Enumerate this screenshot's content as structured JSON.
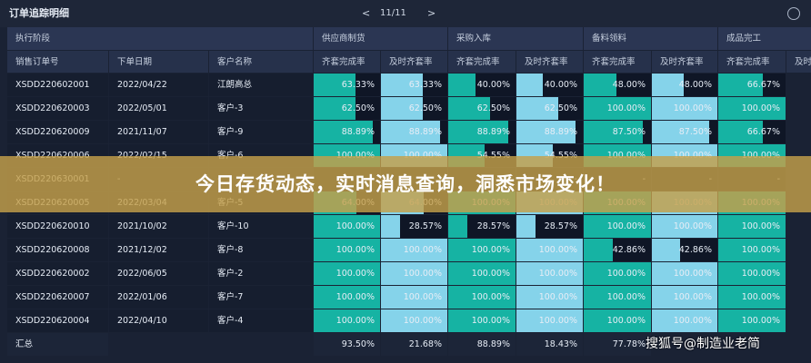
{
  "header": {
    "title": "订单追踪明细",
    "pager": "11/11",
    "prev": "<",
    "next": ">"
  },
  "table": {
    "groups": [
      "执行阶段",
      "供应商制货",
      "采购入库",
      "备料领料",
      "成品完工"
    ],
    "columns": [
      "销售订单号",
      "下单日期",
      "客户名称",
      "齐套完成率",
      "及时齐套率",
      "齐套完成率",
      "及时齐套率",
      "齐套完成率",
      "及时齐套率",
      "齐套完成率",
      "及时齐套率"
    ],
    "rows": [
      [
        "XSDD220602001",
        "2022/04/22",
        "江朗高总",
        "63.33%",
        "63.33%",
        "40.00%",
        "40.00%",
        "48.00%",
        "48.00%",
        "66.67%"
      ],
      [
        "XSDD220620003",
        "2022/05/01",
        "客户-3",
        "62.50%",
        "62.50%",
        "62.50%",
        "62.50%",
        "100.00%",
        "100.00%",
        "100.00%"
      ],
      [
        "XSDD220620009",
        "2021/11/07",
        "客户-9",
        "88.89%",
        "88.89%",
        "88.89%",
        "88.89%",
        "87.50%",
        "87.50%",
        "66.67%"
      ],
      [
        "XSDD220620006",
        "2022/02/15",
        "客户-6",
        "100.00%",
        "100.00%",
        "54.55%",
        "54.55%",
        "100.00%",
        "100.00%",
        "100.00%"
      ],
      [
        "XSDD220630001",
        "-",
        "-",
        "-",
        "-",
        "-",
        "-",
        "-",
        "-",
        "-"
      ],
      [
        "XSDD220620005",
        "2022/03/04",
        "客户-5",
        "64.00%",
        "64.00%",
        "100.00%",
        "100.00%",
        "100.00%",
        "100.00%",
        "100.00%"
      ],
      [
        "XSDD220620010",
        "2021/10/02",
        "客户-10",
        "100.00%",
        "28.57%",
        "28.57%",
        "28.57%",
        "100.00%",
        "100.00%",
        "100.00%"
      ],
      [
        "XSDD220620008",
        "2021/12/02",
        "客户-8",
        "100.00%",
        "100.00%",
        "100.00%",
        "100.00%",
        "42.86%",
        "42.86%",
        "100.00%"
      ],
      [
        "XSDD220620002",
        "2022/06/05",
        "客户-2",
        "100.00%",
        "100.00%",
        "100.00%",
        "100.00%",
        "100.00%",
        "100.00%",
        "100.00%"
      ],
      [
        "XSDD220620007",
        "2022/01/06",
        "客户-7",
        "100.00%",
        "100.00%",
        "100.00%",
        "100.00%",
        "100.00%",
        "100.00%",
        "100.00%"
      ],
      [
        "XSDD220620004",
        "2022/04/10",
        "客户-4",
        "100.00%",
        "100.00%",
        "100.00%",
        "100.00%",
        "100.00%",
        "100.00%",
        "100.00%"
      ]
    ],
    "summary": [
      "汇总",
      "93.50%",
      "21.68%",
      "88.89%",
      "18.43%",
      "77.78%"
    ]
  },
  "banner": "今日存货动态，实时消息查询，洞悉市场变化！",
  "watermark": "搜狐号@制造业老简"
}
